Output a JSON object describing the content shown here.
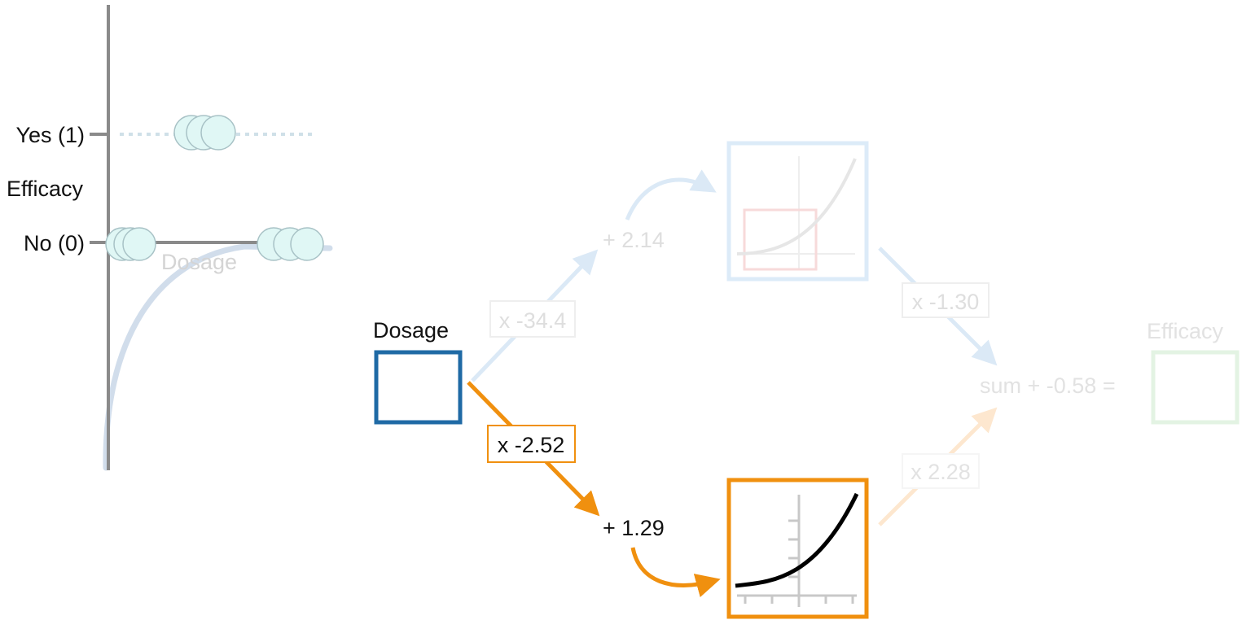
{
  "plot": {
    "y_top_label": "Yes (1)",
    "y_axis_title": "Efficacy",
    "y_bottom_label": "No (0)",
    "x_axis_title": "Dosage"
  },
  "input": {
    "label": "Dosage"
  },
  "top_path": {
    "weight": "x -34.4",
    "bias": "+ 2.14",
    "output_weight": "x -1.30"
  },
  "bottom_path": {
    "weight": "x -2.52",
    "bias": "+ 1.29",
    "output_weight": "x 2.28"
  },
  "output": {
    "sum_text": "sum + -0.58 =",
    "label": "Efficacy"
  },
  "colors": {
    "input_box": "#1f6aa5",
    "bottom_path": "#f0900f",
    "top_path": "#9cc6ea",
    "output_box": "#9fd39f",
    "dot_fill": "#e0f7f5",
    "axis": "#8a8a8a"
  }
}
